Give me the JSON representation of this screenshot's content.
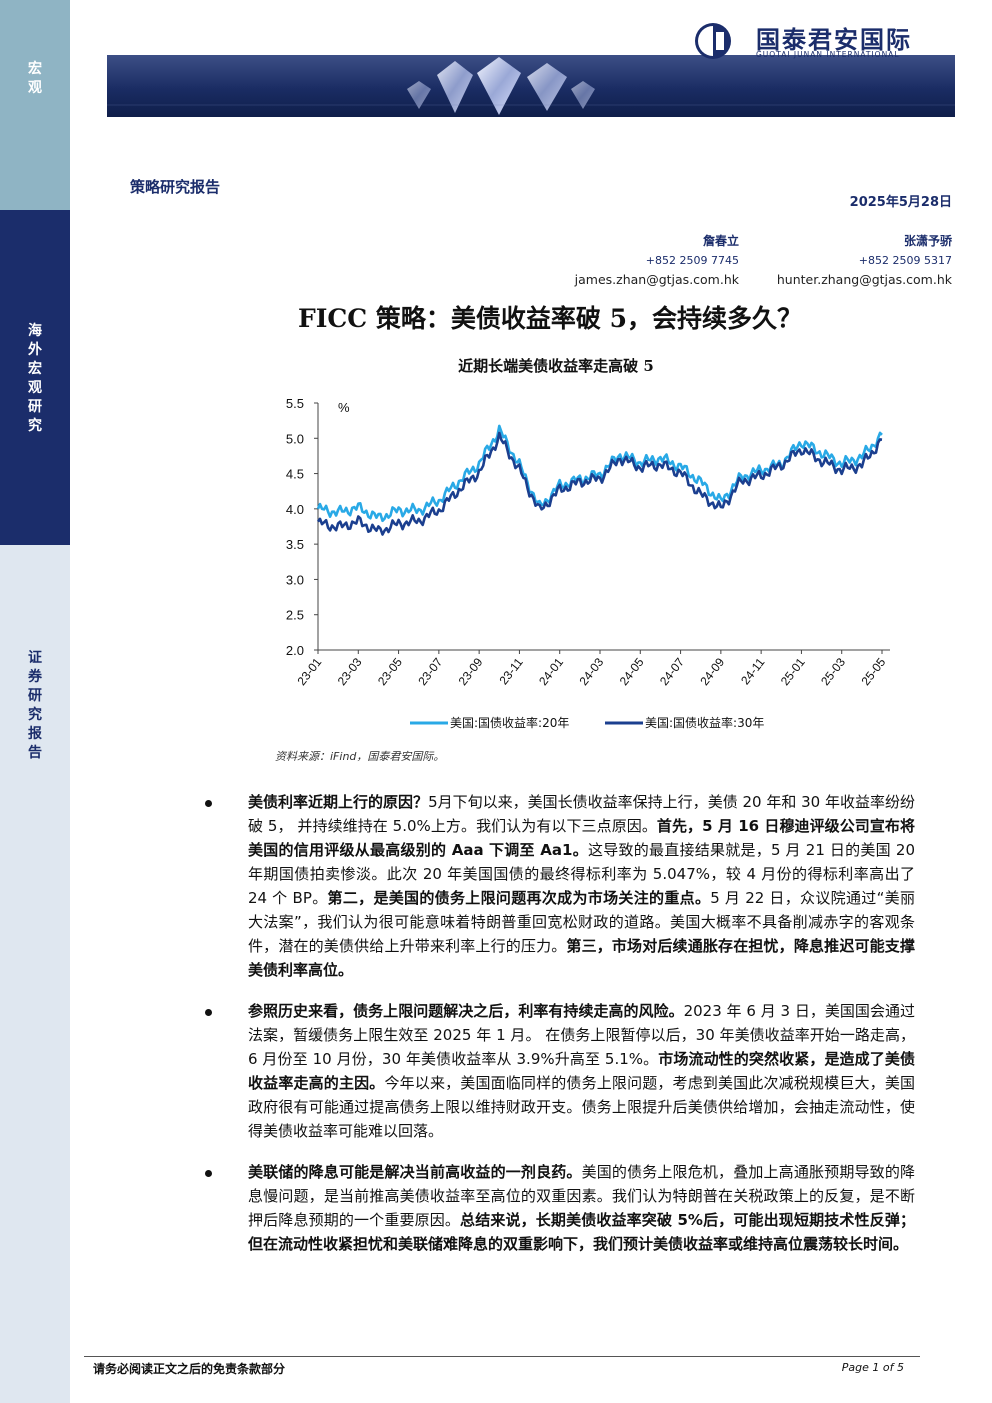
{
  "sidebar": {
    "section1": [
      "宏",
      "观"
    ],
    "section2": [
      "海",
      "外",
      "宏",
      "观",
      "研",
      "究"
    ],
    "section3": [
      "证",
      "券",
      "研",
      "究",
      "报",
      "告"
    ]
  },
  "logo": {
    "cn": "国泰君安国际",
    "en": "GUOTAI JUNAN INTERNATIONAL"
  },
  "header": {
    "report_type": "策略研究报告",
    "date": "2025年5月28日"
  },
  "authors": [
    {
      "name": "詹春立",
      "phone": "+852 2509 7745",
      "email": "james.zhan@gtjas.com.hk"
    },
    {
      "name": "张潇予骄",
      "phone": "+852 2509 5317",
      "email": "hunter.zhang@gtjas.com.hk"
    }
  ],
  "title": "FICC 策略：美债收益率破 5，会持续多久？",
  "chart_title": "近期长端美债收益率走高破 5",
  "chart_data": {
    "type": "line",
    "title": "近期长端美债收益率走高破 5",
    "ylabel": "%",
    "ylim": [
      2.0,
      5.5
    ],
    "yticks": [
      "2.0",
      "2.5",
      "3.0",
      "3.5",
      "4.0",
      "4.5",
      "5.0",
      "5.5"
    ],
    "xticks": [
      "23-01",
      "23-03",
      "23-05",
      "23-07",
      "23-09",
      "23-11",
      "24-01",
      "24-03",
      "24-05",
      "24-07",
      "24-09",
      "24-11",
      "25-01",
      "25-03",
      "25-05"
    ],
    "x": [
      "23-01",
      "23-02",
      "23-03",
      "23-04",
      "23-05",
      "23-06",
      "23-07",
      "23-08",
      "23-09",
      "23-10",
      "23-11",
      "23-12",
      "24-01",
      "24-02",
      "24-03",
      "24-04",
      "24-05",
      "24-06",
      "24-07",
      "24-08",
      "24-09",
      "24-10",
      "24-11",
      "24-12",
      "25-01",
      "25-02",
      "25-03",
      "25-04",
      "25-05"
    ],
    "series": [
      {
        "name": "美国:国债收益率:20年",
        "color": "#29a9e6",
        "values": [
          4.0,
          3.95,
          4.02,
          3.87,
          3.98,
          3.98,
          4.12,
          4.39,
          4.64,
          5.12,
          4.62,
          4.02,
          4.33,
          4.42,
          4.49,
          4.77,
          4.66,
          4.72,
          4.6,
          4.38,
          4.1,
          4.45,
          4.55,
          4.64,
          4.95,
          4.79,
          4.64,
          4.74,
          5.05
        ]
      },
      {
        "name": "美国:国债收益率:30年",
        "color": "#1b3f8f",
        "values": [
          3.8,
          3.74,
          3.82,
          3.68,
          3.79,
          3.83,
          3.98,
          4.27,
          4.52,
          5.02,
          4.55,
          3.97,
          4.27,
          4.38,
          4.43,
          4.72,
          4.59,
          4.63,
          4.51,
          4.2,
          4.0,
          4.39,
          4.47,
          4.62,
          4.85,
          4.68,
          4.55,
          4.62,
          4.98
        ]
      }
    ],
    "legend": "bottom",
    "grid": false
  },
  "source": "资料来源：iFind，国泰君安国际。",
  "bullets": [
    {
      "bold_lead": "美债利率近期上行的原因？",
      "parts": [
        {
          "b": false,
          "t": "5月下旬以来，美国长债收益率保持上行，美债 20 年和 30 年收益率纷纷破 5， 并持续维持在 5.0%上方。我们认为有以下三点原因。"
        },
        {
          "b": true,
          "t": "首先，5 月 16 日穆迪评级公司宣布将美国的信用评级从最高级别的 Aaa 下调至 Aa1。"
        },
        {
          "b": false,
          "t": "这导致的最直接结果就是，5 月 21 日的美国 20 年期国债拍卖惨淡。此次 20 年美国国债的最终得标利率为 5.047%，较 4 月份的得标利率高出了 24 个 BP。"
        },
        {
          "b": true,
          "t": "第二，是美国的债务上限问题再次成为市场关注的重点。"
        },
        {
          "b": false,
          "t": "5 月 22 日，众议院通过“美丽大法案”，我们认为很可能意味着特朗普重回宽松财政的道路。美国大概率不具备削减赤字的客观条件，潜在的美债供给上升带来利率上行的压力。"
        },
        {
          "b": true,
          "t": "第三，市场对后续通胀存在担忧，降息推迟可能支撑美债利率高位。"
        }
      ]
    },
    {
      "bold_lead": "参照历史来看，债务上限问题解决之后，利率有持续走高的风险。",
      "parts": [
        {
          "b": false,
          "t": "2023 年 6 月 3 日，美国国会通过法案，暂缓债务上限生效至 2025 年 1 月。 在债务上限暂停以后，30 年美债收益率开始一路走高，6 月份至 10 月份，30 年美债收益率从 3.9%升高至 5.1%。"
        },
        {
          "b": true,
          "t": "市场流动性的突然收紧，是造成了美债收益率走高的主因。"
        },
        {
          "b": false,
          "t": "今年以来，美国面临同样的债务上限问题，考虑到美国此次减税规模巨大，美国政府很有可能通过提高债务上限以维持财政开支。债务上限提升后美债供给增加，会抽走流动性，使得美债收益率可能难以回落。"
        }
      ]
    },
    {
      "bold_lead": "美联储的降息可能是解决当前高收益的一剂良药。",
      "parts": [
        {
          "b": false,
          "t": "美国的债务上限危机，叠加上高通胀预期导致的降息慢问题，是当前推高美债收益率至高位的双重因素。我们认为特朗普在关税政策上的反复，是不断押后降息预期的一个重要原因。"
        },
        {
          "b": true,
          "t": "总结来说，长期美债收益率突破 5%后，可能出现短期技术性反弹；但在流动性收紧担忧和美联储难降息的双重影响下，我们预计美债收益率或维持高位震荡较长时间。"
        }
      ]
    }
  ],
  "footer": {
    "left": "请务必阅读正文之后的免责条款部分",
    "right": "Page 1 of 5"
  }
}
